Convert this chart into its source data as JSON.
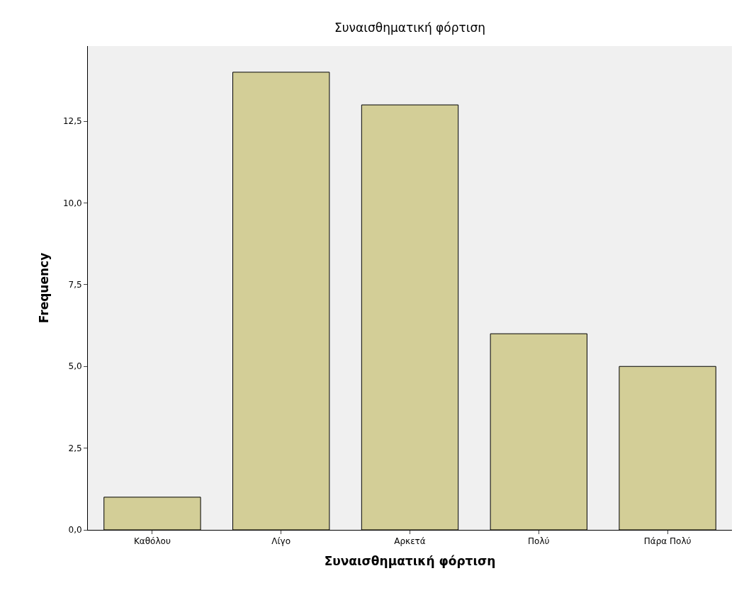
{
  "chart_data": {
    "type": "bar",
    "title": "Συναισθηματική φόρτιση",
    "xlabel": "Συναισθηματική φόρτιση",
    "ylabel": "Frequency",
    "categories": [
      "Καθόλου",
      "Λίγο",
      "Αρκετά",
      "Πολύ",
      "Πάρα Πολύ"
    ],
    "values": [
      1,
      14,
      13,
      6,
      5
    ],
    "color": "#d3ce97",
    "ylim": [
      0,
      14.8
    ],
    "yticks": [
      {
        "value": 0,
        "label": "0,0"
      },
      {
        "value": 2.5,
        "label": "2,5"
      },
      {
        "value": 5,
        "label": "5,0"
      },
      {
        "value": 7.5,
        "label": "7,5"
      },
      {
        "value": 10,
        "label": "10,0"
      },
      {
        "value": 12.5,
        "label": "12,5"
      }
    ],
    "grid": false,
    "legend": false
  }
}
